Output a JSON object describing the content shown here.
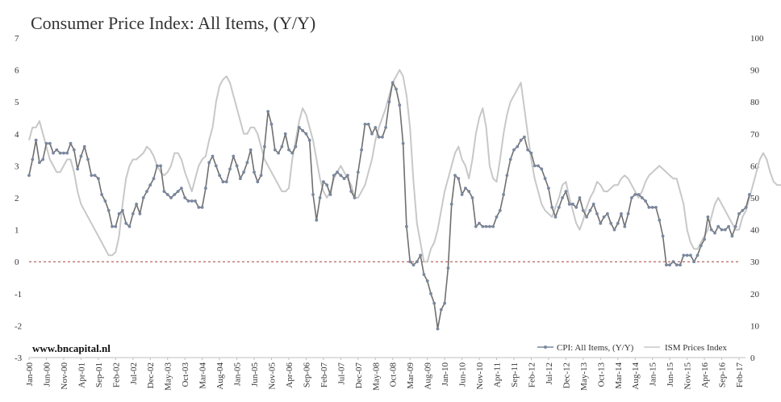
{
  "chart_data": {
    "type": "line",
    "title": "Consumer Price Index: All Items, (Y/Y)",
    "source_label": "www.bncapital.nl",
    "x_tick_labels": [
      "Jan-00",
      "Jun-00",
      "Nov-00",
      "Apr-01",
      "Sep-01",
      "Feb-02",
      "Jul-02",
      "Dec-02",
      "May-03",
      "Oct-03",
      "Mar-04",
      "Aug-04",
      "Jan-05",
      "Jun-05",
      "Nov-05",
      "Apr-06",
      "Sep-06",
      "Feb-07",
      "Jul-07",
      "Dec-07",
      "May-08",
      "Oct-08",
      "Mar-09",
      "Aug-09",
      "Jan-10",
      "Jun-10",
      "Nov-10",
      "Apr-11",
      "Sep-11",
      "Feb-12",
      "Jul-12",
      "Dec-12",
      "May-13",
      "Oct-13",
      "Mar-14",
      "Aug-14",
      "Jan-15",
      "Jun-15",
      "Nov-15",
      "Apr-16",
      "Sep-16",
      "Feb-17"
    ],
    "y_left": {
      "min": -3,
      "max": 7,
      "ticks": [
        "-3",
        "-2",
        "-1",
        "0",
        "1",
        "2",
        "3",
        "4",
        "5",
        "6",
        "7"
      ]
    },
    "y_right": {
      "min": 0,
      "max": 100,
      "ticks": [
        "0",
        "10",
        "20",
        "30",
        "40",
        "50",
        "60",
        "70",
        "80",
        "90",
        "100"
      ]
    },
    "zero_line": {
      "value": 0,
      "style": "dashed",
      "color": "#a0413c"
    },
    "grid": false,
    "legend_position": "bottom-right",
    "series": [
      {
        "name": "CPI: All Items, (Y/Y)",
        "axis": "left",
        "color": "#7a879f",
        "marker": "circle",
        "values": [
          2.7,
          3.2,
          3.8,
          3.1,
          3.2,
          3.7,
          3.7,
          3.4,
          3.5,
          3.4,
          3.4,
          3.4,
          3.7,
          3.5,
          2.9,
          3.3,
          3.6,
          3.2,
          2.7,
          2.7,
          2.6,
          2.1,
          1.9,
          1.6,
          1.1,
          1.1,
          1.5,
          1.6,
          1.2,
          1.1,
          1.5,
          1.8,
          1.5,
          2.0,
          2.2,
          2.4,
          2.6,
          3.0,
          3.0,
          2.2,
          2.1,
          2.0,
          2.1,
          2.2,
          2.3,
          2.0,
          1.9,
          1.9,
          1.9,
          1.7,
          1.7,
          2.3,
          3.1,
          3.3,
          3.0,
          2.7,
          2.5,
          2.5,
          2.9,
          3.3,
          3.0,
          2.6,
          2.8,
          3.1,
          3.5,
          2.8,
          2.5,
          2.7,
          3.6,
          4.7,
          4.3,
          3.5,
          3.4,
          3.6,
          4.0,
          3.5,
          3.4,
          3.6,
          4.2,
          4.1,
          4.0,
          3.8,
          2.1,
          1.3,
          2.0,
          2.5,
          2.4,
          2.1,
          2.7,
          2.8,
          2.7,
          2.6,
          2.7,
          2.2,
          2.0,
          2.8,
          3.5,
          4.3,
          4.3,
          4.0,
          4.2,
          3.9,
          3.9,
          4.2,
          5.0,
          5.6,
          5.4,
          4.9,
          3.7,
          1.1,
          0.0,
          -0.1,
          0.0,
          0.2,
          -0.4,
          -0.6,
          -1.0,
          -1.3,
          -2.1,
          -1.5,
          -1.3,
          -0.2,
          1.8,
          2.7,
          2.6,
          2.1,
          2.3,
          2.2,
          2.0,
          1.1,
          1.2,
          1.1,
          1.1,
          1.1,
          1.1,
          1.4,
          1.6,
          2.1,
          2.7,
          3.2,
          3.5,
          3.6,
          3.8,
          3.9,
          3.5,
          3.4,
          3.0,
          3.0,
          2.9,
          2.6,
          2.3,
          1.7,
          1.4,
          1.7,
          2.0,
          2.2,
          1.8,
          1.8,
          1.7,
          2.0,
          1.6,
          1.4,
          1.6,
          1.8,
          1.5,
          1.2,
          1.4,
          1.5,
          1.2,
          1.0,
          1.2,
          1.5,
          1.1,
          1.5,
          2.0,
          2.1,
          2.1,
          2.0,
          1.9,
          1.7,
          1.7,
          1.7,
          1.3,
          0.8,
          -0.1,
          -0.1,
          0.0,
          -0.1,
          -0.1,
          0.2,
          0.2,
          0.2,
          0.0,
          0.2,
          0.5,
          0.7,
          1.4,
          1.0,
          0.9,
          1.1,
          1.0,
          1.0,
          1.1,
          0.8,
          1.1,
          1.5,
          1.6,
          1.7,
          2.1
        ]
      },
      {
        "name": "ISM Prices Index",
        "axis": "right",
        "color": "#c8c8c8",
        "marker": "none",
        "values": [
          68,
          72,
          72,
          74,
          70,
          66,
          62,
          60,
          58,
          58,
          60,
          62,
          62,
          58,
          52,
          48,
          46,
          44,
          42,
          40,
          38,
          36,
          34,
          32,
          32,
          33,
          38,
          48,
          56,
          60,
          62,
          62,
          63,
          64,
          66,
          65,
          63,
          60,
          58,
          57,
          58,
          60,
          64,
          64,
          62,
          58,
          55,
          52,
          56,
          60,
          62,
          63,
          68,
          72,
          80,
          85,
          87,
          88,
          86,
          82,
          78,
          74,
          70,
          70,
          72,
          72,
          70,
          66,
          62,
          60,
          58,
          56,
          54,
          52,
          52,
          53,
          62,
          68,
          74,
          78,
          76,
          72,
          68,
          62,
          56,
          52,
          50,
          52,
          56,
          58,
          60,
          58,
          56,
          54,
          50,
          50,
          52,
          54,
          58,
          62,
          68,
          72,
          75,
          78,
          82,
          86,
          88,
          90,
          88,
          82,
          72,
          55,
          42,
          36,
          30,
          30,
          34,
          36,
          40,
          46,
          52,
          56,
          60,
          64,
          66,
          62,
          60,
          56,
          62,
          70,
          75,
          78,
          72,
          60,
          56,
          55,
          62,
          70,
          76,
          80,
          82,
          84,
          86,
          78,
          70,
          62,
          56,
          52,
          48,
          46,
          45,
          44,
          47,
          50,
          54,
          55,
          50,
          46,
          42,
          40,
          43,
          47,
          50,
          52,
          55,
          54,
          52,
          52,
          53,
          54,
          54,
          56,
          57,
          56,
          54,
          52,
          50,
          52,
          55,
          57,
          58,
          59,
          60,
          59,
          58,
          57,
          56,
          56,
          52,
          48,
          40,
          36,
          34,
          34,
          36,
          38,
          40,
          44,
          48,
          50,
          48,
          46,
          44,
          42,
          40,
          40,
          44,
          46,
          50,
          54,
          58,
          62,
          64,
          62,
          58,
          55,
          54,
          54,
          54,
          55
        ]
      }
    ]
  }
}
